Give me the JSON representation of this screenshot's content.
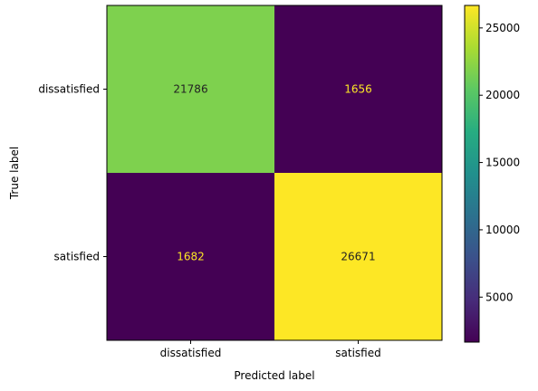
{
  "chart_data": {
    "type": "heatmap",
    "title": "",
    "xlabel": "Predicted label",
    "ylabel": "True label",
    "x_categories": [
      "dissatisfied",
      "satisfied"
    ],
    "y_categories": [
      "dissatisfied",
      "satisfied"
    ],
    "values": [
      [
        21786,
        1656
      ],
      [
        1682,
        26671
      ]
    ],
    "colormap": "viridis",
    "colorbar": {
      "min": 1656,
      "max": 26671,
      "ticks": [
        5000,
        10000,
        15000,
        20000,
        25000
      ]
    },
    "text_colors": {
      "on_dark": "#fde725",
      "on_light": "#222222"
    }
  }
}
